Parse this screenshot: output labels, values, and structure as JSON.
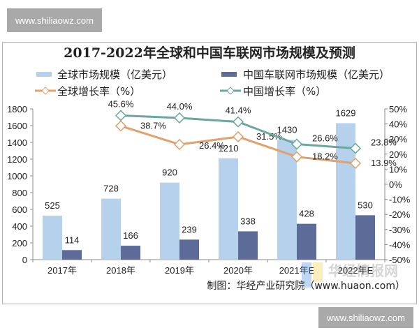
{
  "watermark": {
    "text": "www.shiliaowz.com",
    "logo_text": "华经情报网"
  },
  "source": "制图：华经产业研究院（www.huaon.com）",
  "colors": {
    "global_bar": "#b6d1ec",
    "china_bar": "#5c6b97",
    "global_line": "#e0a16c",
    "china_line": "#6aa79c"
  },
  "chart_data": {
    "type": "bar",
    "title": "2017-2022年全球和中国车联网市场规模及预测",
    "categories": [
      "2017年",
      "2018年",
      "2019年",
      "2020年",
      "2021年E",
      "2022年E"
    ],
    "legend_position": "top",
    "y_left": {
      "ylim": [
        0,
        1800
      ],
      "ticks": [
        "0",
        "200",
        "400",
        "600",
        "800",
        "1000",
        "1200",
        "1400",
        "1600",
        "1800"
      ]
    },
    "y_right": {
      "ylim": [
        -50,
        50
      ],
      "ticks": [
        "-50%",
        "-40%",
        "-30%",
        "-20%",
        "-10%",
        "0%",
        "10%",
        "20%",
        "30%",
        "40%",
        "50%"
      ]
    },
    "grid": false,
    "series": [
      {
        "name": "全球市场规模（亿美元）",
        "type": "bar",
        "axis": "left",
        "values": [
          525,
          728,
          920,
          1210,
          1430,
          1629
        ],
        "labels": [
          "525",
          "728",
          "920",
          "1210",
          "1430",
          "1629"
        ]
      },
      {
        "name": "中国车联网市场规模（亿美元）",
        "type": "bar",
        "axis": "left",
        "values": [
          114,
          166,
          239,
          338,
          428,
          530
        ],
        "labels": [
          "114",
          "166",
          "239",
          "338",
          "428",
          "530"
        ]
      },
      {
        "name": "全球增长率（%）",
        "type": "line",
        "axis": "right",
        "values": [
          null,
          38.7,
          26.4,
          31.5,
          18.2,
          13.9
        ],
        "labels": [
          "",
          "38.7%",
          "26.4%",
          "31.5%",
          "18.2%",
          "13.9%"
        ]
      },
      {
        "name": "中国增长率（%）",
        "type": "line",
        "axis": "right",
        "values": [
          null,
          45.6,
          44.0,
          41.4,
          26.6,
          23.8
        ],
        "labels": [
          "",
          "45.6%",
          "44.0%",
          "41.4%",
          "26.6%",
          "23.8%"
        ]
      }
    ]
  }
}
